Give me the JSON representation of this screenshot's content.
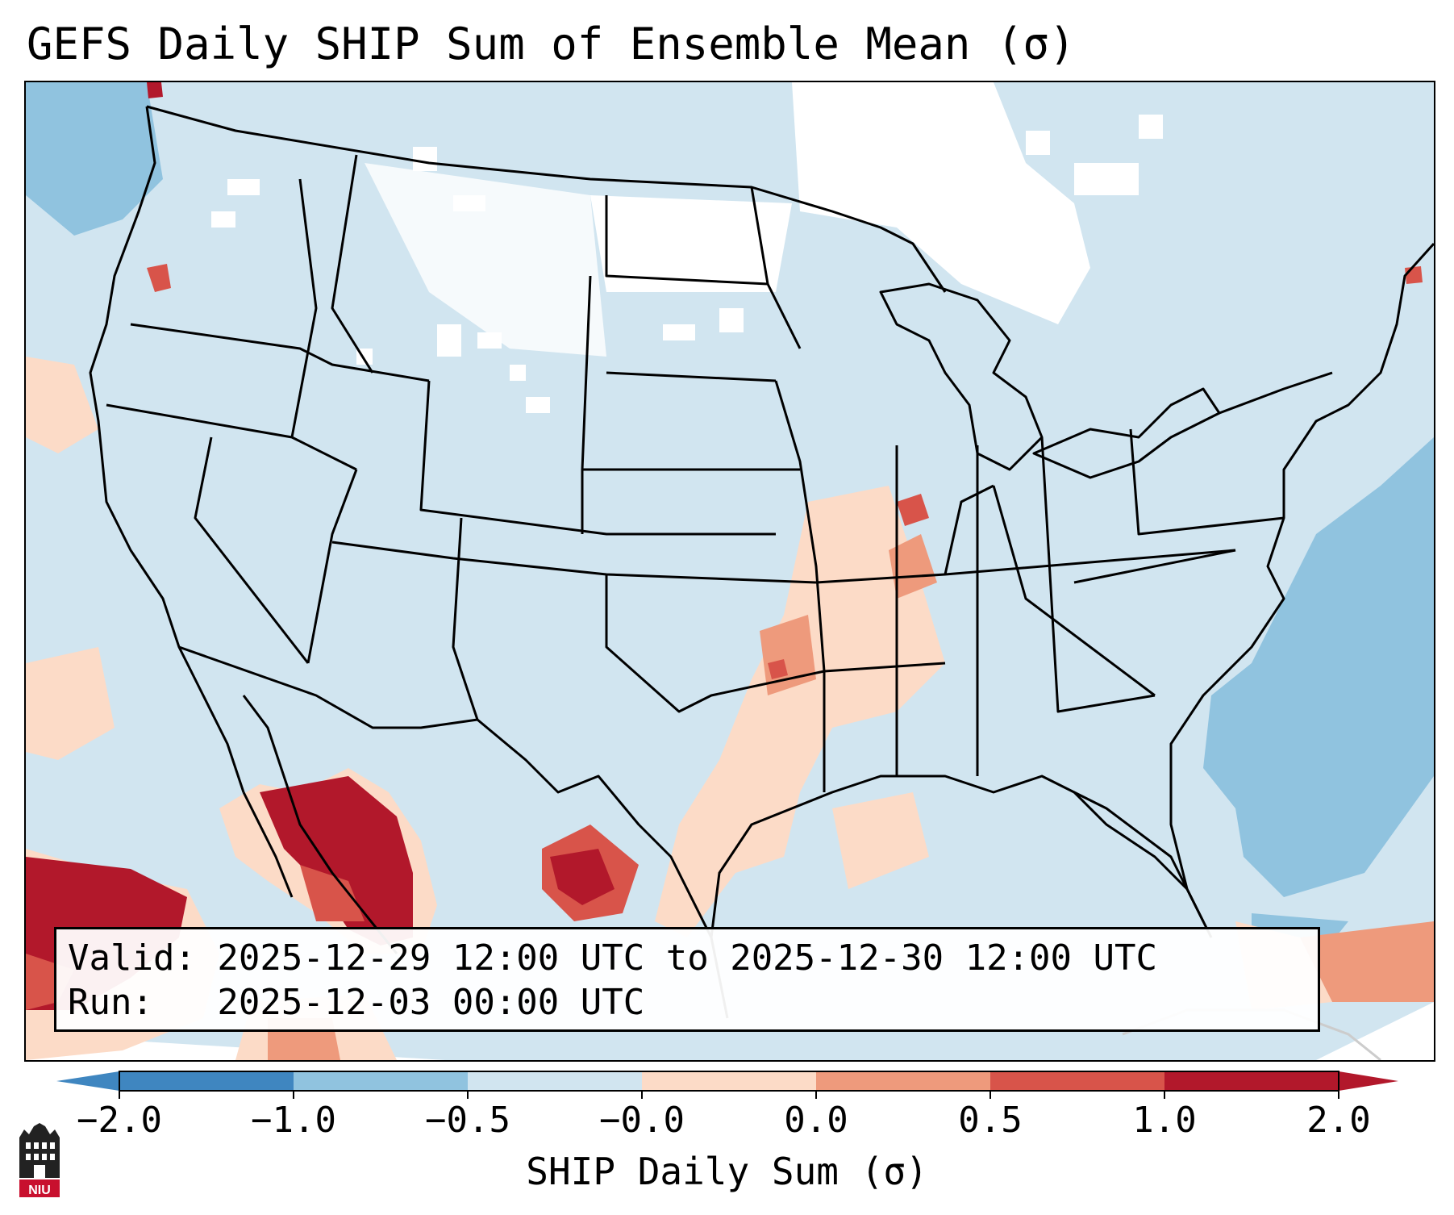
{
  "title": "GEFS Daily SHIP Sum of Ensemble Mean (σ)",
  "info": {
    "valid_line": "Valid: 2025-12-29 12:00 UTC to 2025-12-30 12:00 UTC",
    "run_line": "Run:   2025-12-03 00:00 UTC"
  },
  "colorbar": {
    "label": "SHIP Daily Sum (σ)",
    "ticks": [
      "−2.0",
      "−1.0",
      "−0.5",
      "−0.0",
      "0.0",
      "0.5",
      "1.0",
      "2.0"
    ],
    "colors": [
      "#3f86c0",
      "#90c3df",
      "#d1e5f0",
      "#f7f7f7",
      "#fcdbc7",
      "#ee9a7c",
      "#d8544a",
      "#b2182b"
    ],
    "extend": "both"
  },
  "map": {
    "region": "CONUS",
    "background_colors": {
      "near_zero_negative": "#d1e5f0",
      "neutral": "#ffffff"
    }
  },
  "logo": {
    "text": "NIU",
    "name": "Northern Illinois University logo"
  }
}
